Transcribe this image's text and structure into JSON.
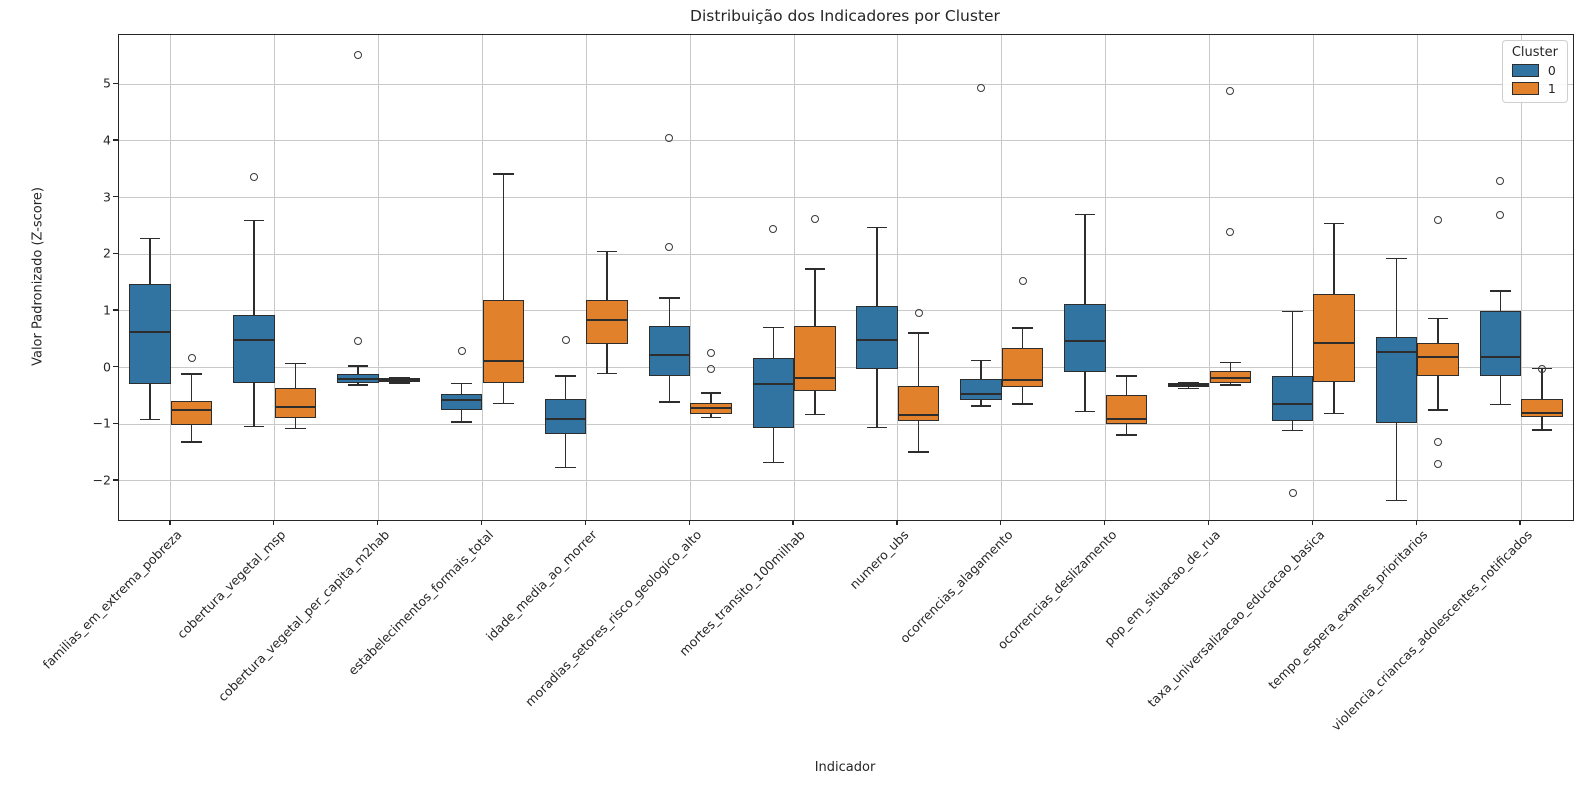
{
  "chart_data": {
    "type": "boxplot",
    "title": "Distribuição dos Indicadores por Cluster",
    "xlabel": "Indicador",
    "ylabel": "Valor Padronizado (Z-score)",
    "ylim": [
      -2.69,
      5.87
    ],
    "yticks": [
      -2,
      -1,
      0,
      1,
      2,
      3,
      4,
      5
    ],
    "yticklabels": [
      "−2",
      "−1",
      "0",
      "1",
      "2",
      "3",
      "4",
      "5"
    ],
    "grid": true,
    "legend": {
      "title": "Cluster",
      "position": "upper right",
      "entries": [
        {
          "label": "0",
          "color": "#3274a1"
        },
        {
          "label": "1",
          "color": "#e1812c"
        }
      ]
    },
    "categories": [
      "familias_em_extrema_pobreza",
      "cobertura_vegetal_msp",
      "cobertura_vegetal_per_capita_m2hab",
      "estabelecimentos_formais_total",
      "idade_media_ao_morrer",
      "moradias_setores_risco_geologico_alto",
      "mortes_transito_100milhab",
      "numero_ubs",
      "ocorrencias_alagamento",
      "ocorrencias_deslizamento",
      "pop_em_situacao_de_rua",
      "taxa_universalizacao_educacao_basica",
      "tempo_espera_exames_prioritarios",
      "violencia_criancas_adolescentes_notificados"
    ],
    "series": [
      {
        "name": "0",
        "color": "#3274a1",
        "boxes": [
          {
            "whislo": -0.92,
            "q1": -0.29,
            "med": 0.63,
            "q3": 1.47,
            "whishi": 2.28,
            "fliers": []
          },
          {
            "whislo": -1.04,
            "q1": -0.27,
            "med": 0.48,
            "q3": 0.92,
            "whishi": 2.6,
            "fliers": [
              3.36
            ]
          },
          {
            "whislo": -0.31,
            "q1": -0.28,
            "med": -0.2,
            "q3": -0.11,
            "whishi": 0.03,
            "fliers": [
              5.51,
              0.47
            ]
          },
          {
            "whislo": -0.96,
            "q1": -0.75,
            "med": -0.57,
            "q3": -0.46,
            "whishi": -0.28,
            "fliers": [
              0.29
            ]
          },
          {
            "whislo": -1.76,
            "q1": -1.18,
            "med": -0.9,
            "q3": -0.56,
            "whishi": -0.15,
            "fliers": [
              0.48
            ]
          },
          {
            "whislo": -0.61,
            "q1": -0.15,
            "med": 0.22,
            "q3": 0.73,
            "whishi": 1.23,
            "fliers": [
              4.05,
              2.13
            ]
          },
          {
            "whislo": -1.67,
            "q1": -1.06,
            "med": -0.29,
            "q3": 0.17,
            "whishi": 0.71,
            "fliers": [
              2.45
            ]
          },
          {
            "whislo": -1.06,
            "q1": -0.02,
            "med": 0.48,
            "q3": 1.09,
            "whishi": 2.47,
            "fliers": []
          },
          {
            "whislo": -0.68,
            "q1": -0.58,
            "med": -0.47,
            "q3": -0.21,
            "whishi": 0.13,
            "fliers": [
              4.93
            ]
          },
          {
            "whislo": -0.77,
            "q1": -0.07,
            "med": 0.47,
            "q3": 1.12,
            "whishi": 2.7,
            "fliers": []
          },
          {
            "whislo": -0.37,
            "q1": -0.34,
            "med": -0.3,
            "q3": -0.28,
            "whishi": -0.26,
            "fliers": []
          },
          {
            "whislo": -1.11,
            "q1": -0.95,
            "med": -0.64,
            "q3": -0.15,
            "whishi": 0.99,
            "fliers": [
              -2.21
            ]
          },
          {
            "whislo": -2.35,
            "q1": -0.98,
            "med": 0.28,
            "q3": 0.54,
            "whishi": 1.93,
            "fliers": []
          },
          {
            "whislo": -0.65,
            "q1": -0.14,
            "med": 0.18,
            "q3": 1.0,
            "whishi": 1.35,
            "fliers": [
              3.3,
              2.7
            ]
          }
        ]
      },
      {
        "name": "1",
        "color": "#e1812c",
        "boxes": [
          {
            "whislo": -1.31,
            "q1": -1.01,
            "med": -0.74,
            "q3": -0.59,
            "whishi": -0.11,
            "fliers": [
              0.17
            ]
          },
          {
            "whislo": -1.08,
            "q1": -0.89,
            "med": -0.7,
            "q3": -0.36,
            "whishi": 0.07,
            "fliers": []
          },
          {
            "whislo": -0.27,
            "q1": -0.25,
            "med": -0.22,
            "q3": -0.19,
            "whishi": -0.17,
            "fliers": []
          },
          {
            "whislo": -0.63,
            "q1": -0.27,
            "med": 0.11,
            "q3": 1.2,
            "whishi": 3.42,
            "fliers": []
          },
          {
            "whislo": -0.1,
            "q1": 0.41,
            "med": 0.84,
            "q3": 1.2,
            "whishi": 2.05,
            "fliers": []
          },
          {
            "whislo": -0.88,
            "q1": -0.82,
            "med": -0.72,
            "q3": -0.62,
            "whishi": -0.45,
            "fliers": [
              0.25,
              -0.02
            ]
          },
          {
            "whislo": -0.83,
            "q1": -0.41,
            "med": -0.19,
            "q3": 0.73,
            "whishi": 1.74,
            "fliers": [
              2.62
            ]
          },
          {
            "whislo": -1.49,
            "q1": -0.95,
            "med": -0.83,
            "q3": -0.32,
            "whishi": 0.61,
            "fliers": [
              0.96
            ]
          },
          {
            "whislo": -0.64,
            "q1": -0.34,
            "med": -0.22,
            "q3": 0.34,
            "whishi": 0.7,
            "fliers": [
              1.53
            ]
          },
          {
            "whislo": -1.19,
            "q1": -1.0,
            "med": -0.91,
            "q3": -0.49,
            "whishi": -0.15,
            "fliers": []
          },
          {
            "whislo": -0.31,
            "q1": -0.27,
            "med": -0.18,
            "q3": -0.06,
            "whishi": 0.09,
            "fliers": [
              4.89,
              2.39
            ]
          },
          {
            "whislo": -0.81,
            "q1": -0.25,
            "med": 0.44,
            "q3": 1.3,
            "whishi": 2.54,
            "fliers": []
          },
          {
            "whislo": -0.75,
            "q1": -0.14,
            "med": 0.19,
            "q3": 0.44,
            "whishi": 0.87,
            "fliers": [
              2.6,
              -1.31,
              -1.7
            ]
          },
          {
            "whislo": -1.1,
            "q1": -0.87,
            "med": -0.8,
            "q3": -0.55,
            "whishi": -0.02,
            "fliers": [
              -0.02
            ]
          }
        ]
      }
    ]
  }
}
